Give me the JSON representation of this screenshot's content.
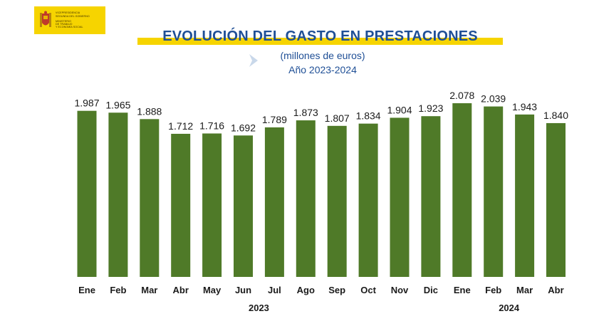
{
  "header": {
    "logo_lines": [
      "VICEPRESIDENCIA",
      "SEGUNDA DEL GOBIERNO",
      "MINISTERIO",
      "DE TRABAJO",
      "Y ECONOMÍA SOCIAL"
    ],
    "title": "EVOLUCIÓN DEL GASTO EN PRESTACIONES",
    "subtitle_units": "(millones de euros)",
    "subtitle_period": "Año 2023-2024"
  },
  "colors": {
    "bar": "#4f7a28",
    "title": "#1f4f96",
    "highlight": "#f6d400",
    "text": "#1a1a1a"
  },
  "chart_data": {
    "type": "bar",
    "categories": [
      "Ene",
      "Feb",
      "Mar",
      "Abr",
      "May",
      "Jun",
      "Jul",
      "Ago",
      "Sep",
      "Oct",
      "Nov",
      "Dic",
      "Ene",
      "Feb",
      "Mar",
      "Abr"
    ],
    "values": [
      1987,
      1965,
      1888,
      1712,
      1716,
      1692,
      1789,
      1873,
      1807,
      1834,
      1904,
      1923,
      2078,
      2039,
      1943,
      1840
    ],
    "data_labels": [
      "1.987",
      "1.965",
      "1.888",
      "1.712",
      "1.716",
      "1.692",
      "1.789",
      "1.873",
      "1.807",
      "1.834",
      "1.904",
      "1.923",
      "2.078",
      "2.039",
      "1.943",
      "1.840"
    ],
    "year_groups": [
      {
        "label": "2023",
        "count": 12
      },
      {
        "label": "2024",
        "count": 4
      }
    ],
    "title": "EVOLUCIÓN DEL GASTO EN PRESTACIONES",
    "subtitle": "(millones de euros) Año 2023-2024",
    "xlabel": "",
    "ylabel": "",
    "ylim": [
      0,
      2100
    ],
    "grid": false,
    "legend": "none"
  }
}
